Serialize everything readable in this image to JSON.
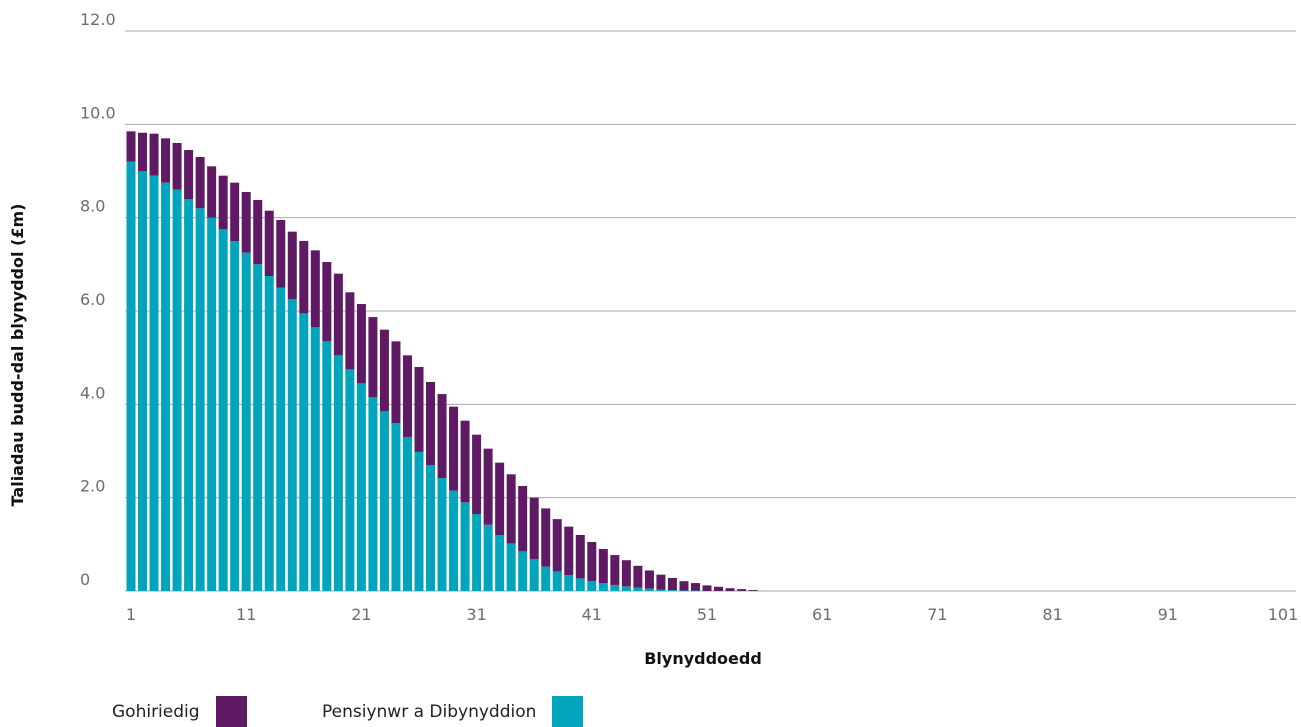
{
  "chart_data": {
    "type": "bar",
    "stacked": true,
    "xlabel": "Blynyddoedd",
    "ylabel": "Taliadau budd-dal blynyddol (£m)",
    "ylim": [
      0,
      12
    ],
    "y_ticks": [
      0,
      2,
      4,
      6,
      8,
      10,
      12
    ],
    "y_tick_labels": [
      "0",
      "2.0",
      "4.0",
      "6.0",
      "8.0",
      "10.0",
      "12.0"
    ],
    "x_tick_labels": [
      "1",
      "11",
      "21",
      "31",
      "41",
      "51",
      "61",
      "71",
      "81",
      "91",
      "101"
    ],
    "x_range": [
      1,
      103
    ],
    "grid": true,
    "legend_position": "bottom-left",
    "series": [
      {
        "name": "Pensiynwr a Dibynyddion",
        "color": "#00a5bd",
        "values": [
          9.2,
          9.0,
          8.9,
          8.75,
          8.6,
          8.4,
          8.2,
          8.0,
          7.75,
          7.5,
          7.25,
          7.0,
          6.75,
          6.5,
          6.25,
          5.95,
          5.65,
          5.35,
          5.05,
          4.75,
          4.45,
          4.15,
          3.85,
          3.6,
          3.3,
          2.98,
          2.7,
          2.42,
          2.15,
          1.9,
          1.65,
          1.42,
          1.2,
          1.02,
          0.85,
          0.68,
          0.52,
          0.42,
          0.34,
          0.27,
          0.21,
          0.17,
          0.13,
          0.1,
          0.07,
          0.05,
          0.03,
          0.02,
          0.01,
          0.01,
          0,
          0,
          0,
          0,
          0
        ]
      },
      {
        "name": "Gohiriedig",
        "color": "#5e1a63",
        "values": [
          0.65,
          0.82,
          0.9,
          0.95,
          1.0,
          1.05,
          1.1,
          1.1,
          1.15,
          1.25,
          1.3,
          1.38,
          1.4,
          1.45,
          1.45,
          1.55,
          1.65,
          1.7,
          1.75,
          1.65,
          1.7,
          1.72,
          1.75,
          1.75,
          1.75,
          1.82,
          1.78,
          1.8,
          1.8,
          1.75,
          1.7,
          1.63,
          1.55,
          1.48,
          1.4,
          1.32,
          1.25,
          1.12,
          1.04,
          0.93,
          0.84,
          0.73,
          0.64,
          0.56,
          0.47,
          0.39,
          0.32,
          0.26,
          0.2,
          0.16,
          0.12,
          0.09,
          0.06,
          0.04,
          0.02
        ]
      }
    ]
  },
  "legend": {
    "items": [
      {
        "label": "Gohiriedig",
        "color": "#5e1a63"
      },
      {
        "label": "Pensiynwr a Dibynyddion",
        "color": "#00a5bd"
      }
    ]
  }
}
